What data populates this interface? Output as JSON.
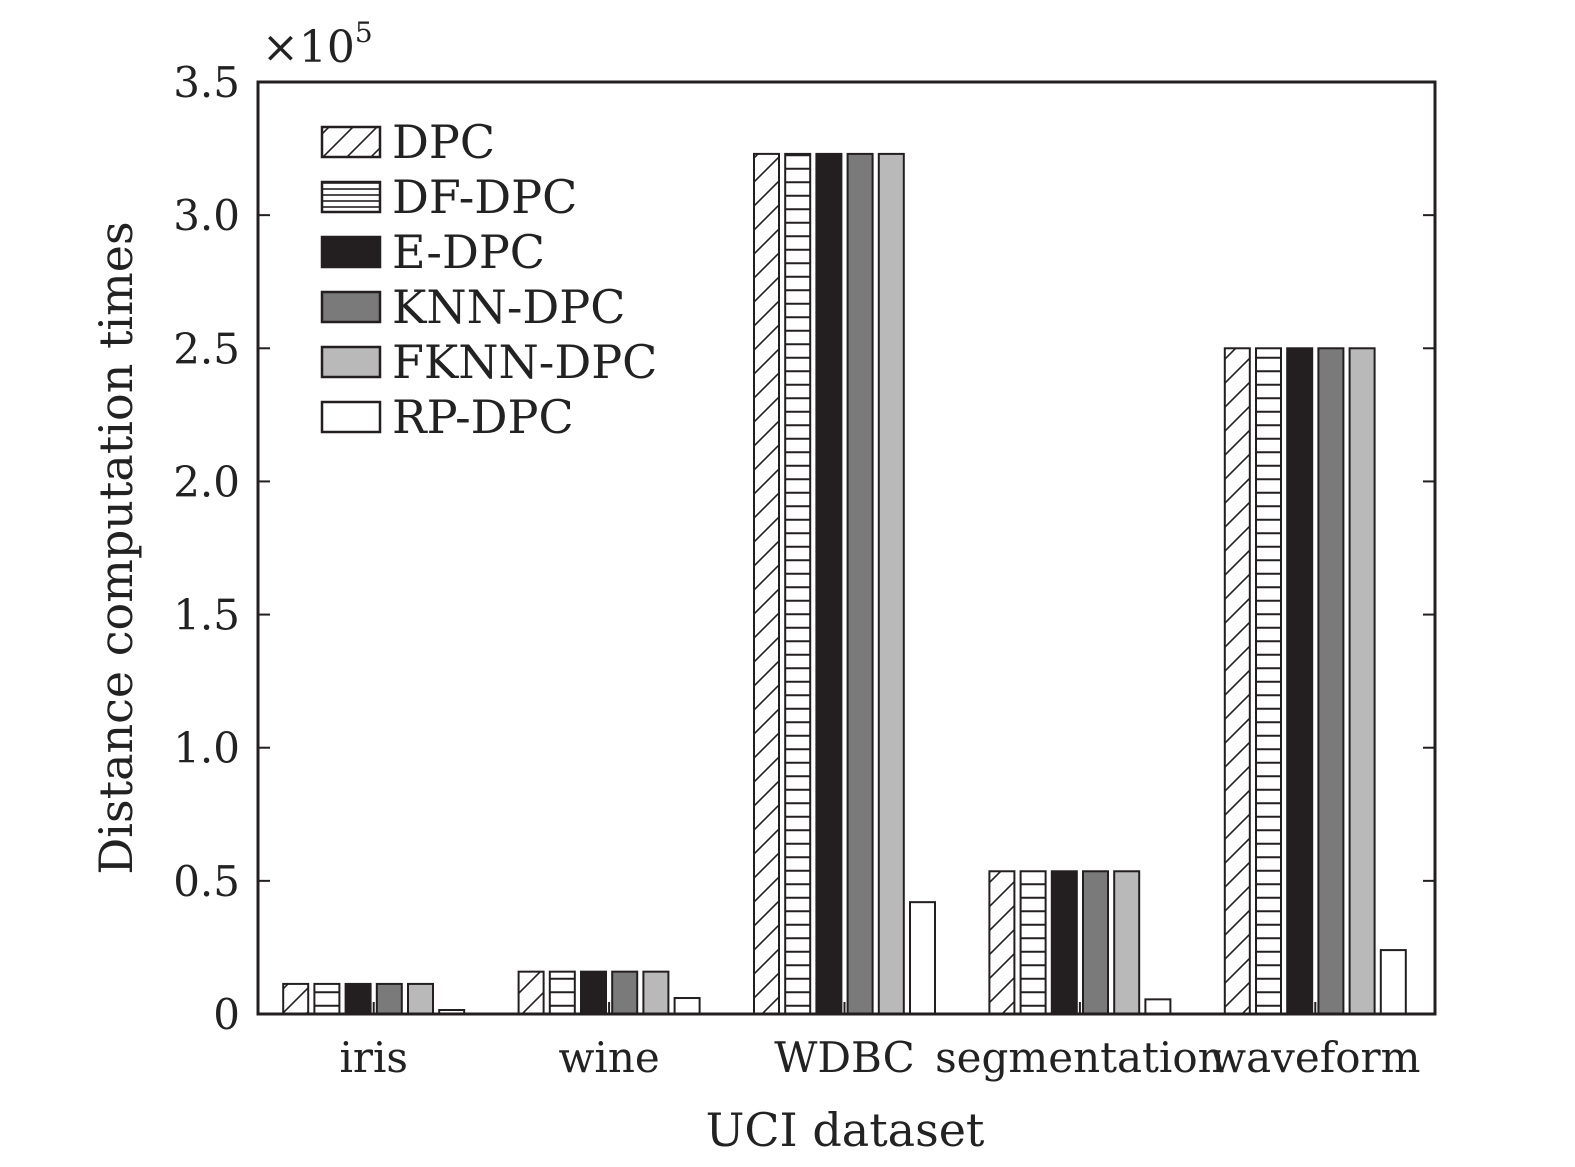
{
  "chart_data": {
    "type": "bar",
    "xlabel": "UCI dataset",
    "ylabel": "Distance computation times",
    "y_multiplier": "×10",
    "y_multiplier_exp": "5",
    "ylim": [
      0,
      3.5
    ],
    "yticks": [
      "0",
      "0.5",
      "1.0",
      "1.5",
      "2.0",
      "2.5",
      "3.0",
      "3.5"
    ],
    "ytick_values": [
      0,
      0.5,
      1.0,
      1.5,
      2.0,
      2.5,
      3.0,
      3.5
    ],
    "categories": [
      "iris",
      "wine",
      "WDBC",
      "segmentation",
      "waveform"
    ],
    "series": [
      {
        "name": "DPC",
        "pattern": "diagonal",
        "values": [
          0.113,
          0.159,
          3.23,
          0.536,
          2.5
        ]
      },
      {
        "name": "DF-DPC",
        "pattern": "horizontal",
        "values": [
          0.113,
          0.159,
          3.23,
          0.536,
          2.5
        ]
      },
      {
        "name": "E-DPC",
        "pattern": "solid-black",
        "values": [
          0.113,
          0.159,
          3.23,
          0.536,
          2.5
        ]
      },
      {
        "name": "KNN-DPC",
        "pattern": "solid-darkgray",
        "values": [
          0.113,
          0.159,
          3.23,
          0.536,
          2.5
        ]
      },
      {
        "name": "FKNN-DPC",
        "pattern": "solid-lightgray",
        "values": [
          0.113,
          0.159,
          3.23,
          0.536,
          2.5
        ]
      },
      {
        "name": "RP-DPC",
        "pattern": "white",
        "values": [
          0.015,
          0.06,
          0.42,
          0.055,
          0.24
        ]
      }
    ],
    "legend_position": "top-left",
    "grid": false,
    "colors": {
      "solid-black": "#231f20",
      "solid-darkgray": "#7a7a7a",
      "solid-lightgray": "#b9b9b9",
      "white": "#ffffff",
      "edge": "#231f20"
    }
  }
}
